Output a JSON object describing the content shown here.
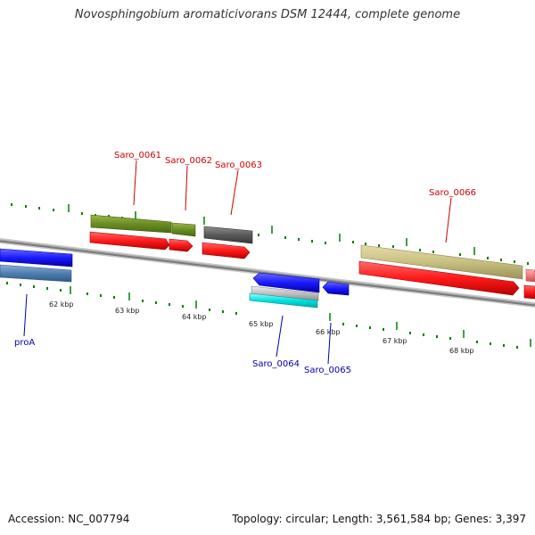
{
  "title": "Novosphingobium aromaticivorans DSM 12444, complete genome",
  "footer": {
    "accession": "Accession: NC_007794",
    "stats": "Topology: circular; Length: 3,561,584 bp; Genes: 3,397"
  },
  "colors": {
    "backbone": "#808080",
    "forward_label": "#cc0000",
    "reverse_label": "#0000aa",
    "ticks": "#008000",
    "cds_red": "#ff1a1a",
    "cds_blue": "#1a1aff",
    "gene_olive": "#6b8e23",
    "gene_gray": "#5a5a5a",
    "gene_khaki": "#c8c080",
    "gene_steel": "#4f7fb0",
    "gene_cyan": "#00e0e0",
    "gene_silver": "#c0c0c0",
    "gene_salmon": "#f08080"
  },
  "scale_labels": [
    "62 kbp",
    "63 kbp",
    "64 kbp",
    "65 kbp",
    "66 kbp",
    "67 kbp",
    "68 kbp"
  ],
  "forward_gene_labels": [
    "Saro_0061",
    "Saro_0062",
    "Saro_0063",
    "Saro_0066"
  ],
  "reverse_gene_labels": [
    "proA",
    "Saro_0064",
    "Saro_0065"
  ]
}
